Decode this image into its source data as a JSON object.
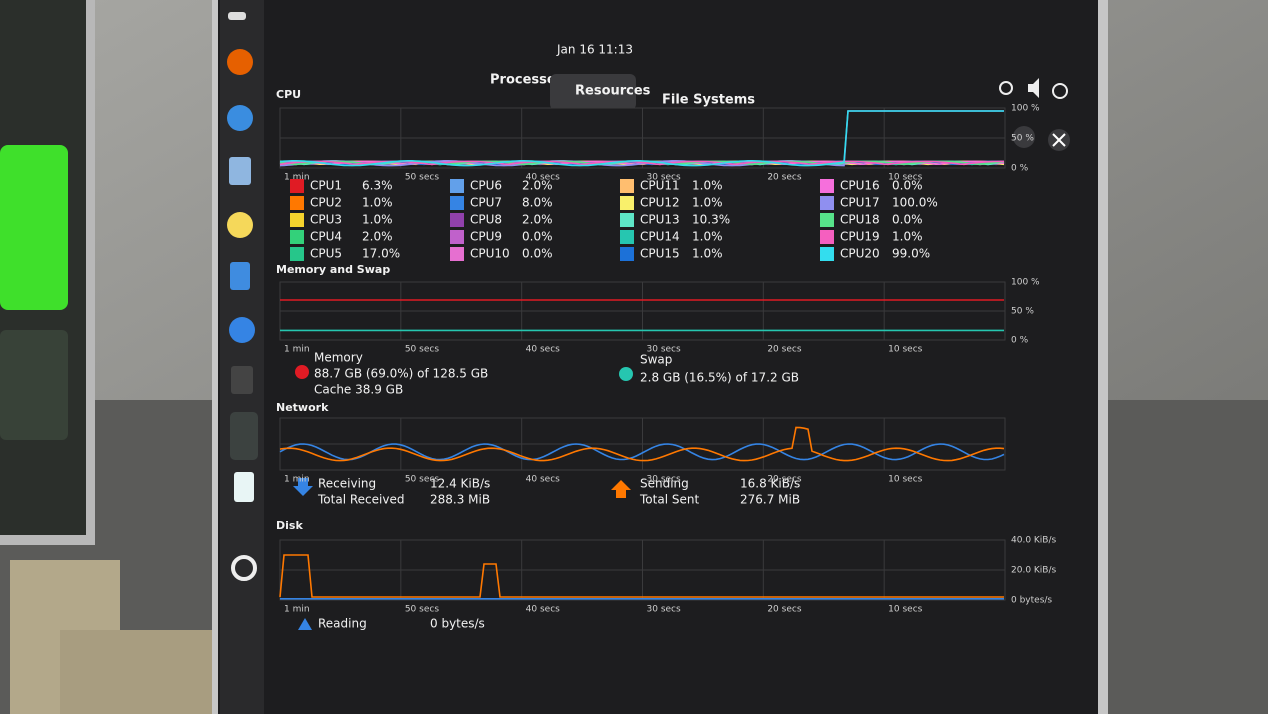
{
  "top_bar": {
    "clock": "Jan 16 11:13"
  },
  "tabs": [
    "Processes",
    "Resources",
    "File Systems"
  ],
  "time_labels": [
    "1 min",
    "50 secs",
    "40 secs",
    "30 secs",
    "20 secs",
    "10 secs"
  ],
  "cpu": {
    "title": "CPU",
    "percent_labels": [
      "100 %",
      "50 %",
      "0 %"
    ],
    "cores": [
      {
        "name": "CPU1",
        "value": "6.3%",
        "color": "#e01b24"
      },
      {
        "name": "CPU2",
        "value": "1.0%",
        "color": "#ff7800"
      },
      {
        "name": "CPU3",
        "value": "1.0%",
        "color": "#f6d32d"
      },
      {
        "name": "CPU4",
        "value": "2.0%",
        "color": "#33d17a"
      },
      {
        "name": "CPU5",
        "value": "17.0%",
        "color": "#26c68a"
      },
      {
        "name": "CPU6",
        "value": "2.0%",
        "color": "#62a0ea"
      },
      {
        "name": "CPU7",
        "value": "8.0%",
        "color": "#3584e4"
      },
      {
        "name": "CPU8",
        "value": "2.0%",
        "color": "#9141ac"
      },
      {
        "name": "CPU9",
        "value": "0.0%",
        "color": "#c061cb"
      },
      {
        "name": "CPU10",
        "value": "0.0%",
        "color": "#e66fd0"
      },
      {
        "name": "CPU11",
        "value": "1.0%",
        "color": "#ffbe6f"
      },
      {
        "name": "CPU12",
        "value": "1.0%",
        "color": "#f9f06b"
      },
      {
        "name": "CPU13",
        "value": "10.3%",
        "color": "#5ee6c7"
      },
      {
        "name": "CPU14",
        "value": "1.0%",
        "color": "#26c6b0"
      },
      {
        "name": "CPU15",
        "value": "1.0%",
        "color": "#1c71d8"
      },
      {
        "name": "CPU16",
        "value": "0.0%",
        "color": "#f66fdc"
      },
      {
        "name": "CPU17",
        "value": "100.0%",
        "color": "#8f8ff0"
      },
      {
        "name": "CPU18",
        "value": "0.0%",
        "color": "#57e389"
      },
      {
        "name": "CPU19",
        "value": "1.0%",
        "color": "#f55fbf"
      },
      {
        "name": "CPU20",
        "value": "99.0%",
        "color": "#33ddee"
      }
    ]
  },
  "memory": {
    "title": "Memory and Swap",
    "memory_label": "Memory",
    "memory_usage": "88.7 GB (69.0%) of 128.5 GB",
    "cache": "Cache 38.9 GB",
    "swap_label": "Swap",
    "swap_usage": "2.8 GB (16.5%) of 17.2 GB"
  },
  "network": {
    "title": "Network",
    "receiving_label": "Receiving",
    "total_received_label": "Total Received",
    "receiving_rate": "12.4 KiB/s",
    "total_received": "288.3 MiB",
    "sending_label": "Sending",
    "total_sent_label": "Total Sent",
    "sending_rate": "16.8 KiB/s",
    "total_sent": "276.7 MiB"
  },
  "disk": {
    "title": "Disk",
    "reading_label": "Reading",
    "reading_rate": "0 bytes/s",
    "rate_labels": [
      "40.0 KiB/s",
      "20.0 KiB/s",
      "0 bytes/s"
    ]
  }
}
